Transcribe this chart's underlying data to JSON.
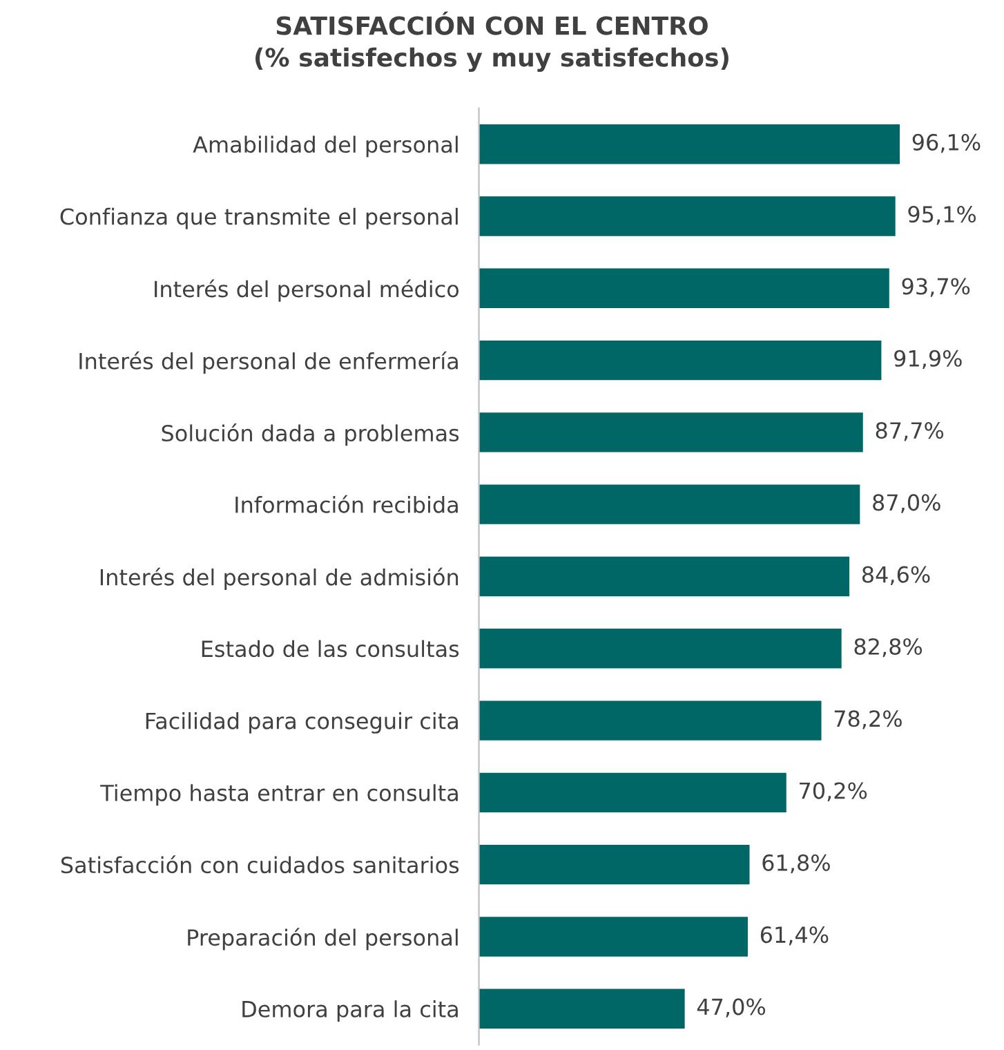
{
  "chart_data": {
    "type": "bar",
    "orientation": "horizontal",
    "title": "SATISFACCIÓN CON EL CENTRO\n(% satisfechos y muy satisfechos)",
    "categories": [
      "Amabilidad del personal",
      "Confianza que transmite el personal",
      "Interés del personal médico",
      "Interés del personal de enfermería",
      "Solución dada a problemas",
      "Información recibida",
      "Interés del personal de admisión",
      "Estado de las consultas",
      "Facilidad para conseguir cita",
      "Tiempo hasta entrar en consulta",
      "Satisfacción con cuidados sanitarios",
      "Preparación del personal",
      "Demora para la cita"
    ],
    "values": [
      96.1,
      95.1,
      93.7,
      91.9,
      87.7,
      87.0,
      84.6,
      82.8,
      78.2,
      70.2,
      61.8,
      61.4,
      47.0
    ],
    "value_labels": [
      "96,1%",
      "95,1%",
      "93,7%",
      "91,9%",
      "87,7%",
      "87,0%",
      "84,6%",
      "82,8%",
      "78,2%",
      "70,2%",
      "61,8%",
      "61,4%",
      "47,0%"
    ],
    "color": "#006666",
    "grid": false,
    "legend": false,
    "tick_labels": "y"
  }
}
